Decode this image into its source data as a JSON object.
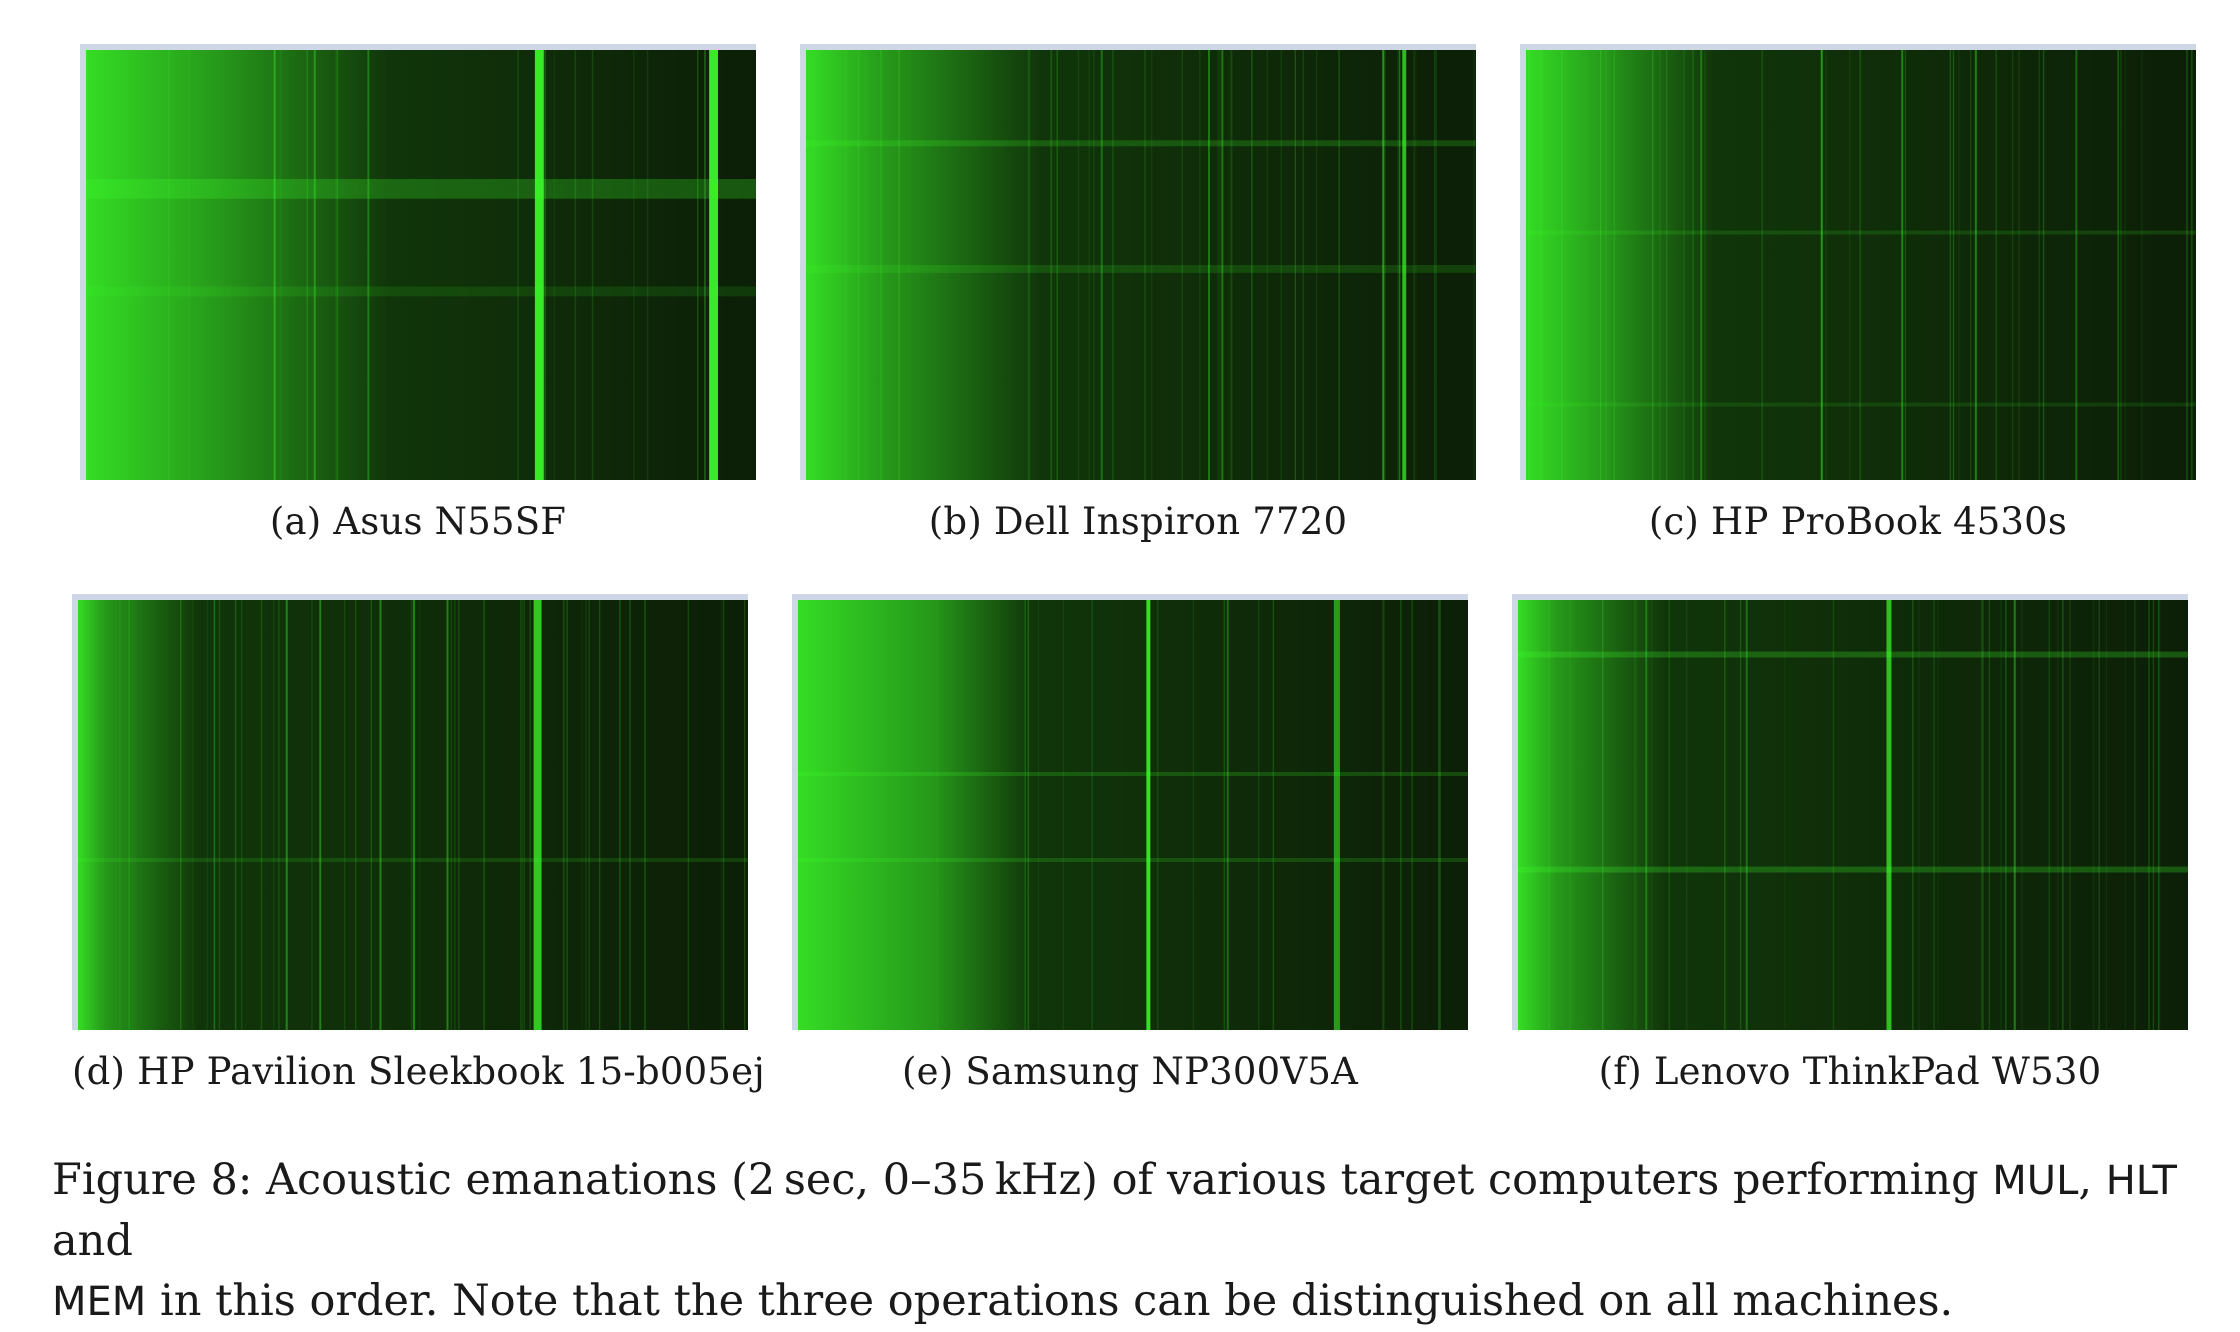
{
  "panels": [
    {
      "tag": "(a)",
      "label": "Asus N55SF",
      "profile": "asus"
    },
    {
      "tag": "(b)",
      "label": "Dell Inspiron 7720",
      "profile": "dell"
    },
    {
      "tag": "(c)",
      "label": "HP ProBook 4530s",
      "profile": "hp"
    },
    {
      "tag": "(d)",
      "label": "HP Pavilion Sleekbook 15-b005ej",
      "profile": "pavilion"
    },
    {
      "tag": "(e)",
      "label": "Samsung NP300V5A",
      "profile": "samsung"
    },
    {
      "tag": "(f)",
      "label": "Lenovo ThinkPad W530",
      "profile": "lenovo"
    }
  ],
  "figure_caption": {
    "prefix": "Figure 8: Acoustic emanations (2 sec, 0–35 kHz) of various target computers performing ",
    "op1": "MUL",
    "sep1": ", ",
    "op2": "HLT",
    "sep2": " and ",
    "op3": "MEM",
    "suffix": " in this order. Note that the three operations can be distinguished on all machines."
  },
  "colors": {
    "background": "#0b1a06",
    "signal": "#3cff2a",
    "axis": "#cfd7e6"
  }
}
